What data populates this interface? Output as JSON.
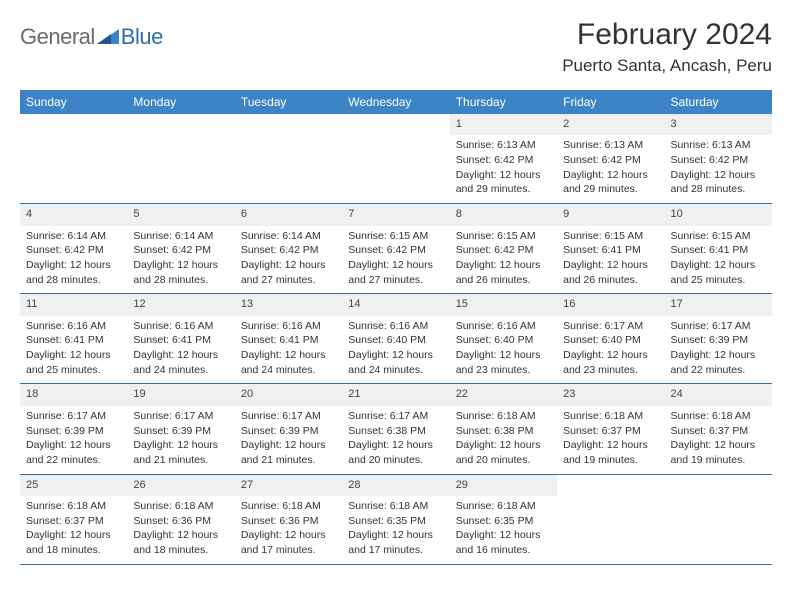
{
  "logo": {
    "general": "General",
    "blue": "Blue"
  },
  "header": {
    "title": "February 2024",
    "location": "Puerto Santa, Ancash, Peru"
  },
  "colors": {
    "header_band": "#3c84c6",
    "week_border": "#2f6fa8",
    "daynum_bg": "#eef0f1",
    "text": "#333333",
    "logo_gray": "#6b6b6b",
    "logo_blue": "#2f6fa8",
    "tri_dark": "#1f5a8f",
    "tri_light": "#3c84c6"
  },
  "day_names": [
    "Sunday",
    "Monday",
    "Tuesday",
    "Wednesday",
    "Thursday",
    "Friday",
    "Saturday"
  ],
  "weeks": [
    [
      null,
      null,
      null,
      null,
      {
        "n": "1",
        "sr": "6:13 AM",
        "ss": "6:42 PM",
        "dl": "12 hours and 29 minutes."
      },
      {
        "n": "2",
        "sr": "6:13 AM",
        "ss": "6:42 PM",
        "dl": "12 hours and 29 minutes."
      },
      {
        "n": "3",
        "sr": "6:13 AM",
        "ss": "6:42 PM",
        "dl": "12 hours and 28 minutes."
      }
    ],
    [
      {
        "n": "4",
        "sr": "6:14 AM",
        "ss": "6:42 PM",
        "dl": "12 hours and 28 minutes."
      },
      {
        "n": "5",
        "sr": "6:14 AM",
        "ss": "6:42 PM",
        "dl": "12 hours and 28 minutes."
      },
      {
        "n": "6",
        "sr": "6:14 AM",
        "ss": "6:42 PM",
        "dl": "12 hours and 27 minutes."
      },
      {
        "n": "7",
        "sr": "6:15 AM",
        "ss": "6:42 PM",
        "dl": "12 hours and 27 minutes."
      },
      {
        "n": "8",
        "sr": "6:15 AM",
        "ss": "6:42 PM",
        "dl": "12 hours and 26 minutes."
      },
      {
        "n": "9",
        "sr": "6:15 AM",
        "ss": "6:41 PM",
        "dl": "12 hours and 26 minutes."
      },
      {
        "n": "10",
        "sr": "6:15 AM",
        "ss": "6:41 PM",
        "dl": "12 hours and 25 minutes."
      }
    ],
    [
      {
        "n": "11",
        "sr": "6:16 AM",
        "ss": "6:41 PM",
        "dl": "12 hours and 25 minutes."
      },
      {
        "n": "12",
        "sr": "6:16 AM",
        "ss": "6:41 PM",
        "dl": "12 hours and 24 minutes."
      },
      {
        "n": "13",
        "sr": "6:16 AM",
        "ss": "6:41 PM",
        "dl": "12 hours and 24 minutes."
      },
      {
        "n": "14",
        "sr": "6:16 AM",
        "ss": "6:40 PM",
        "dl": "12 hours and 24 minutes."
      },
      {
        "n": "15",
        "sr": "6:16 AM",
        "ss": "6:40 PM",
        "dl": "12 hours and 23 minutes."
      },
      {
        "n": "16",
        "sr": "6:17 AM",
        "ss": "6:40 PM",
        "dl": "12 hours and 23 minutes."
      },
      {
        "n": "17",
        "sr": "6:17 AM",
        "ss": "6:39 PM",
        "dl": "12 hours and 22 minutes."
      }
    ],
    [
      {
        "n": "18",
        "sr": "6:17 AM",
        "ss": "6:39 PM",
        "dl": "12 hours and 22 minutes."
      },
      {
        "n": "19",
        "sr": "6:17 AM",
        "ss": "6:39 PM",
        "dl": "12 hours and 21 minutes."
      },
      {
        "n": "20",
        "sr": "6:17 AM",
        "ss": "6:39 PM",
        "dl": "12 hours and 21 minutes."
      },
      {
        "n": "21",
        "sr": "6:17 AM",
        "ss": "6:38 PM",
        "dl": "12 hours and 20 minutes."
      },
      {
        "n": "22",
        "sr": "6:18 AM",
        "ss": "6:38 PM",
        "dl": "12 hours and 20 minutes."
      },
      {
        "n": "23",
        "sr": "6:18 AM",
        "ss": "6:37 PM",
        "dl": "12 hours and 19 minutes."
      },
      {
        "n": "24",
        "sr": "6:18 AM",
        "ss": "6:37 PM",
        "dl": "12 hours and 19 minutes."
      }
    ],
    [
      {
        "n": "25",
        "sr": "6:18 AM",
        "ss": "6:37 PM",
        "dl": "12 hours and 18 minutes."
      },
      {
        "n": "26",
        "sr": "6:18 AM",
        "ss": "6:36 PM",
        "dl": "12 hours and 18 minutes."
      },
      {
        "n": "27",
        "sr": "6:18 AM",
        "ss": "6:36 PM",
        "dl": "12 hours and 17 minutes."
      },
      {
        "n": "28",
        "sr": "6:18 AM",
        "ss": "6:35 PM",
        "dl": "12 hours and 17 minutes."
      },
      {
        "n": "29",
        "sr": "6:18 AM",
        "ss": "6:35 PM",
        "dl": "12 hours and 16 minutes."
      },
      null,
      null
    ]
  ],
  "labels": {
    "sunrise": "Sunrise: ",
    "sunset": "Sunset: ",
    "daylight": "Daylight: "
  }
}
